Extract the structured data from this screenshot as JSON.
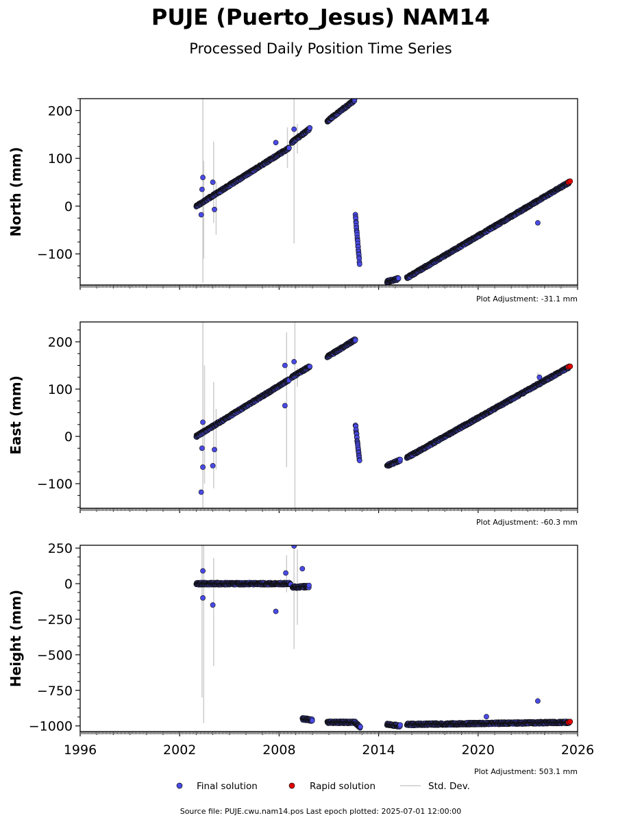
{
  "title": "PUJE (Puerto_Jesus) NAM14",
  "subtitle": "Processed Daily Position Time Series",
  "source_note": "Source file: PUJE.cwu.nam14.pos  Last epoch plotted: 2025-07-01 12:00:00",
  "legend": {
    "final": "Final solution",
    "rapid": "Rapid solution",
    "std": "Std. Dev."
  },
  "colors": {
    "final": "#4a4ae6",
    "rapid": "#e00000",
    "std": "#cccccc",
    "edge": "#111111"
  },
  "chart_data": [
    {
      "type": "scatter",
      "ylabel": "North (mm)",
      "adjustment": "Plot Adjustment: -31.1 mm",
      "xlim": [
        1996,
        2026
      ],
      "ylim": [
        -165,
        225
      ],
      "yticks": [
        -100,
        0,
        100,
        200
      ],
      "ytick_labels": [
        "−100",
        "0",
        "100",
        "200"
      ],
      "segments": [
        {
          "x0": 2003.0,
          "x1": 2008.6,
          "y0": 0,
          "y1": 122
        },
        {
          "x0": 2008.75,
          "x1": 2009.85,
          "y0": 133,
          "y1": 162
        },
        {
          "x0": 2010.9,
          "x1": 2012.55,
          "y0": 178,
          "y1": 222
        },
        {
          "x0": 2012.6,
          "x1": 2012.85,
          "y0": -20,
          "y1": -120
        },
        {
          "x0": 2014.5,
          "x1": 2015.2,
          "y0": -158,
          "y1": -152
        },
        {
          "x0": 2015.7,
          "x1": 2025.5,
          "y0": -150,
          "y1": 50
        }
      ],
      "outliers": [
        [
          2003.4,
          60
        ],
        [
          2003.35,
          35
        ],
        [
          2003.3,
          -18
        ],
        [
          2004.0,
          50
        ],
        [
          2004.1,
          -7
        ],
        [
          2007.8,
          133
        ],
        [
          2008.9,
          161
        ],
        [
          2023.6,
          -35
        ]
      ],
      "std_bars": [
        [
          2003.4,
          -160,
          225
        ],
        [
          2003.45,
          -110,
          95
        ],
        [
          2004.05,
          -35,
          135
        ],
        [
          2004.2,
          -60,
          50
        ],
        [
          2008.5,
          80,
          165
        ],
        [
          2008.9,
          -78,
          225
        ],
        [
          2009.1,
          110,
          172
        ]
      ],
      "rapid": [
        [
          2025.45,
          50
        ],
        [
          2025.55,
          52
        ]
      ]
    },
    {
      "type": "scatter",
      "ylabel": "East (mm)",
      "adjustment": "Plot Adjustment: -60.3 mm",
      "xlim": [
        1996,
        2026
      ],
      "ylim": [
        -152,
        242
      ],
      "yticks": [
        -100,
        0,
        100,
        200
      ],
      "ytick_labels": [
        "−100",
        "0",
        "100",
        "200"
      ],
      "segments": [
        {
          "x0": 2003.0,
          "x1": 2008.6,
          "y0": 0,
          "y1": 120
        },
        {
          "x0": 2008.75,
          "x1": 2009.85,
          "y0": 125,
          "y1": 148
        },
        {
          "x0": 2010.9,
          "x1": 2012.6,
          "y0": 168,
          "y1": 205
        },
        {
          "x0": 2012.6,
          "x1": 2012.85,
          "y0": 25,
          "y1": -52
        },
        {
          "x0": 2014.5,
          "x1": 2015.3,
          "y0": -62,
          "y1": -50
        },
        {
          "x0": 2015.7,
          "x1": 2025.5,
          "y0": -45,
          "y1": 147
        }
      ],
      "outliers": [
        [
          2003.4,
          30
        ],
        [
          2003.35,
          -25
        ],
        [
          2003.4,
          -65
        ],
        [
          2003.3,
          -118
        ],
        [
          2004.0,
          -62
        ],
        [
          2004.1,
          -28
        ],
        [
          2008.35,
          150
        ],
        [
          2008.35,
          65
        ],
        [
          2008.9,
          158
        ],
        [
          2023.7,
          125
        ]
      ],
      "std_bars": [
        [
          2003.4,
          -152,
          242
        ],
        [
          2003.5,
          -100,
          150
        ],
        [
          2004.05,
          -110,
          115
        ],
        [
          2004.2,
          -70,
          58
        ],
        [
          2008.45,
          -65,
          220
        ],
        [
          2008.95,
          -152,
          242
        ],
        [
          2009.1,
          105,
          145
        ],
        [
          2023.6,
          110,
          135
        ]
      ],
      "rapid": [
        [
          2025.45,
          147
        ],
        [
          2025.55,
          148
        ]
      ]
    },
    {
      "type": "scatter",
      "ylabel": "Height (mm)",
      "adjustment": "Plot Adjustment: 503.1 mm",
      "xlabel_ticks": [
        "1996",
        "2002",
        "2008",
        "2014",
        "2020",
        "2026"
      ],
      "xlim": [
        1996,
        2026
      ],
      "ylim": [
        -1040,
        270
      ],
      "yticks": [
        -1000,
        -750,
        -500,
        -250,
        0,
        250
      ],
      "ytick_labels": [
        "−1000",
        "−750",
        "−500",
        "−250",
        "0",
        "250"
      ],
      "segments": [
        {
          "x0": 2003.0,
          "x1": 2008.7,
          "y0": 0,
          "y1": 0
        },
        {
          "x0": 2008.8,
          "x1": 2009.8,
          "y0": -25,
          "y1": -20
        },
        {
          "x0": 2009.4,
          "x1": 2010.0,
          "y0": -950,
          "y1": -960
        },
        {
          "x0": 2010.9,
          "x1": 2012.6,
          "y0": -975,
          "y1": -975
        },
        {
          "x0": 2012.6,
          "x1": 2012.9,
          "y0": -980,
          "y1": -1010
        },
        {
          "x0": 2014.5,
          "x1": 2015.3,
          "y0": -990,
          "y1": -1000
        },
        {
          "x0": 2015.7,
          "x1": 2025.5,
          "y0": -990,
          "y1": -975
        }
      ],
      "outliers": [
        [
          2003.4,
          90
        ],
        [
          2003.4,
          -100
        ],
        [
          2004.0,
          -150
        ],
        [
          2007.8,
          -195
        ],
        [
          2008.4,
          75
        ],
        [
          2008.9,
          265
        ],
        [
          2009.4,
          105
        ],
        [
          2020.5,
          -935
        ],
        [
          2023.6,
          -825
        ]
      ],
      "std_bars": [
        [
          2003.35,
          -800,
          270
        ],
        [
          2003.45,
          -980,
          270
        ],
        [
          2004.05,
          -580,
          180
        ],
        [
          2008.45,
          -60,
          200
        ],
        [
          2008.9,
          -460,
          270
        ],
        [
          2009.1,
          -290,
          240
        ],
        [
          2023.6,
          -845,
          -800
        ]
      ],
      "rapid": [
        [
          2025.45,
          -975
        ],
        [
          2025.55,
          -970
        ]
      ]
    }
  ]
}
